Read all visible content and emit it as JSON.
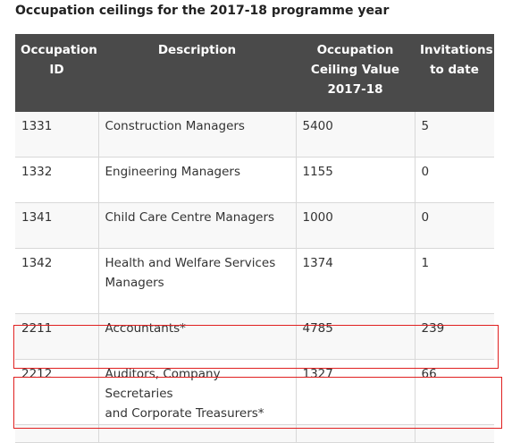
{
  "title": "Occupation ceilings for the 2017-18 programme year",
  "table": {
    "headers": {
      "id_line1": "Occupation",
      "id_line2": "ID",
      "description": "Description",
      "ceiling_line1": "Occupation",
      "ceiling_line2": "Ceiling Value",
      "ceiling_line3": "2017-18",
      "invites_line1": "Invitations",
      "invites_line2": "to date"
    },
    "rows": [
      {
        "id": "1331",
        "description_1": "Construction Managers",
        "description_2": "",
        "ceiling": "5400",
        "invitations": "5"
      },
      {
        "id": "1332",
        "description_1": "Engineering Managers",
        "description_2": "",
        "ceiling": "1155",
        "invitations": "0"
      },
      {
        "id": "1341",
        "description_1": "Child Care Centre Managers",
        "description_2": "",
        "ceiling": "1000",
        "invitations": "0"
      },
      {
        "id": "1342",
        "description_1": "Health and Welfare Services",
        "description_2": "Managers",
        "ceiling": "1374",
        "invitations": "1"
      },
      {
        "id": "2211",
        "description_1": "Accountants*",
        "description_2": "",
        "ceiling": "4785",
        "invitations": "239"
      },
      {
        "id": "2212",
        "description_1": "Auditors, Company Secretaries",
        "description_2": "and Corporate Treasurers*",
        "ceiling": "1327",
        "invitations": "66"
      }
    ]
  },
  "highlight_color": "#e02020"
}
